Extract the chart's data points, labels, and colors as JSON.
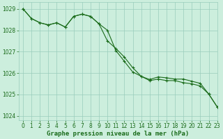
{
  "title": "Graphe pression niveau de la mer (hPa)",
  "bg_color": "#cceedd",
  "grid_color": "#99ccbb",
  "line_color": "#1a6b1a",
  "xlim": [
    -0.5,
    23
  ],
  "ylim": [
    1023.8,
    1029.3
  ],
  "yticks": [
    1024,
    1025,
    1026,
    1027,
    1028,
    1029
  ],
  "xticks": [
    0,
    1,
    2,
    3,
    4,
    5,
    6,
    7,
    8,
    9,
    10,
    11,
    12,
    13,
    14,
    15,
    16,
    17,
    18,
    19,
    20,
    21,
    22,
    23
  ],
  "series1_x": [
    0,
    1,
    2,
    3,
    4,
    5,
    6,
    7,
    8,
    9,
    10,
    11,
    12,
    13,
    14,
    15,
    16,
    17,
    18,
    19,
    20,
    21,
    22,
    23
  ],
  "series1_y": [
    1029.0,
    1028.55,
    1028.35,
    1028.25,
    1028.35,
    1028.15,
    1028.65,
    1028.75,
    1028.65,
    1028.3,
    1028.0,
    1027.05,
    1026.55,
    1026.05,
    1025.85,
    1025.7,
    1025.82,
    1025.78,
    1025.72,
    1025.72,
    1025.62,
    1025.52,
    1025.02,
    1024.42
  ],
  "series2_x": [
    0,
    1,
    2,
    3,
    4,
    5,
    6,
    7,
    8,
    9,
    10,
    11,
    12,
    13,
    14,
    15,
    16,
    17,
    18,
    19,
    20,
    21,
    22,
    23
  ],
  "series2_y": [
    1029.0,
    1028.55,
    1028.35,
    1028.25,
    1028.35,
    1028.15,
    1028.65,
    1028.75,
    1028.65,
    1028.3,
    1027.5,
    1027.15,
    1026.75,
    1026.25,
    1025.85,
    1025.65,
    1025.72,
    1025.65,
    1025.65,
    1025.55,
    1025.5,
    1025.4,
    1025.02,
    1024.42
  ],
  "title_fontsize": 6.5,
  "tick_fontsize": 5.5
}
